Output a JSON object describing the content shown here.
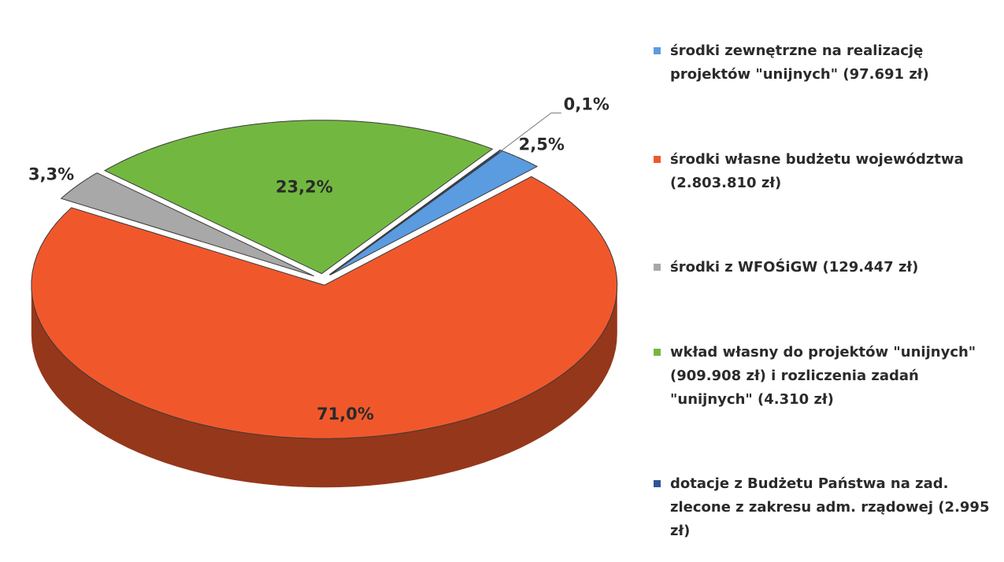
{
  "chart_data": {
    "type": "pie",
    "categories": [
      "środki zewnętrzne na realizację projektów \"unijnych\" (97.691 zł)",
      "środki własne budżetu województwa (2.803.810 zł)",
      "środki z WFOŚiGW (129.447 zł)",
      "wkład własny do projektów \"unijnych\" (909.908 zł) i rozliczenia zadań \"unijnych\" (4.310 zł)",
      "dotacje z Budżetu Państwa na zad. zlecone z zakresu adm. rządowej (2.995 zł)"
    ],
    "values": [
      2.5,
      71.0,
      3.3,
      23.2,
      0.1
    ],
    "value_labels": [
      "2,5%",
      "71,0%",
      "3,3%",
      "23,2%",
      "0,1%"
    ],
    "colors": [
      "#5b9be0",
      "#f0582c",
      "#a8a8a8",
      "#72b840",
      "#2e5597"
    ],
    "legend": "right"
  }
}
